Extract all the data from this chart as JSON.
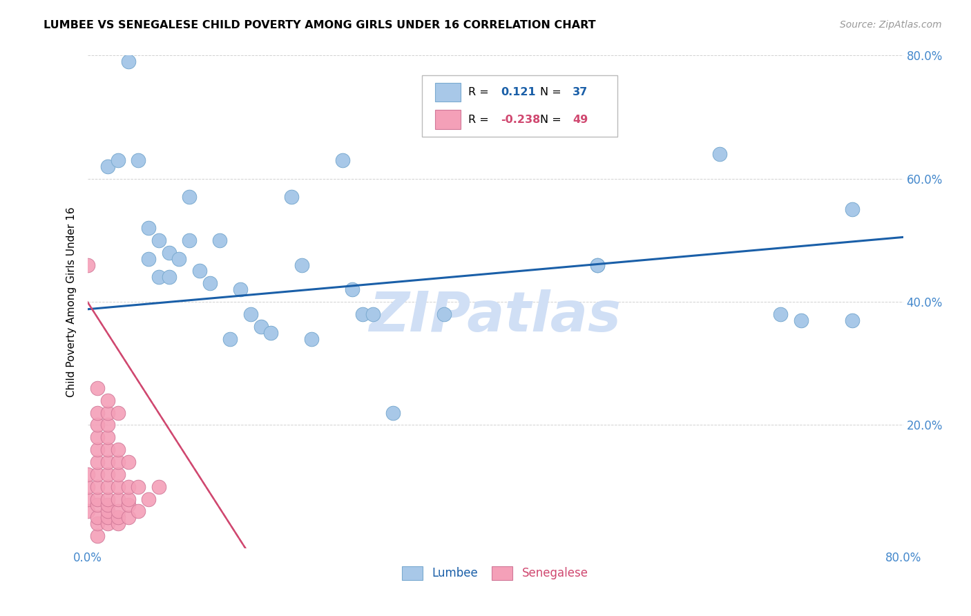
{
  "title": "LUMBEE VS SENEGALESE CHILD POVERTY AMONG GIRLS UNDER 16 CORRELATION CHART",
  "source": "Source: ZipAtlas.com",
  "ylabel": "Child Poverty Among Girls Under 16",
  "xlim": [
    0,
    0.8
  ],
  "ylim": [
    0,
    0.8
  ],
  "xticks": [
    0.0,
    0.1,
    0.2,
    0.3,
    0.4,
    0.5,
    0.6,
    0.7,
    0.8
  ],
  "yticks": [
    0.0,
    0.2,
    0.4,
    0.6,
    0.8
  ],
  "lumbee_R": 0.121,
  "lumbee_N": 37,
  "senegalese_R": -0.238,
  "senegalese_N": 49,
  "lumbee_color": "#a8c8e8",
  "lumbee_edge": "#7aaad0",
  "senegalese_color": "#f4a0b8",
  "senegalese_edge": "#d07898",
  "trendline_blue_color": "#1a5fa8",
  "trendline_pink_color": "#d04870",
  "watermark_color": "#d0dff5",
  "lumbee_x": [
    0.02,
    0.03,
    0.04,
    0.05,
    0.06,
    0.06,
    0.07,
    0.07,
    0.08,
    0.08,
    0.09,
    0.1,
    0.1,
    0.11,
    0.12,
    0.13,
    0.14,
    0.15,
    0.16,
    0.17,
    0.18,
    0.2,
    0.21,
    0.25,
    0.26,
    0.27,
    0.28,
    0.3,
    0.35,
    0.5,
    0.5,
    0.62,
    0.68,
    0.7,
    0.75,
    0.75,
    0.22
  ],
  "lumbee_y": [
    0.62,
    0.63,
    0.79,
    0.63,
    0.52,
    0.47,
    0.5,
    0.44,
    0.48,
    0.44,
    0.47,
    0.5,
    0.57,
    0.45,
    0.43,
    0.5,
    0.34,
    0.42,
    0.38,
    0.36,
    0.35,
    0.57,
    0.46,
    0.63,
    0.42,
    0.38,
    0.38,
    0.22,
    0.38,
    0.46,
    0.46,
    0.64,
    0.38,
    0.37,
    0.37,
    0.55,
    0.34
  ],
  "senegalese_x": [
    0.0,
    0.0,
    0.0,
    0.0,
    0.0,
    0.01,
    0.01,
    0.01,
    0.01,
    0.01,
    0.01,
    0.01,
    0.01,
    0.01,
    0.01,
    0.01,
    0.01,
    0.01,
    0.02,
    0.02,
    0.02,
    0.02,
    0.02,
    0.02,
    0.02,
    0.02,
    0.02,
    0.02,
    0.02,
    0.02,
    0.02,
    0.03,
    0.03,
    0.03,
    0.03,
    0.03,
    0.03,
    0.03,
    0.03,
    0.03,
    0.04,
    0.04,
    0.04,
    0.04,
    0.04,
    0.05,
    0.05,
    0.06,
    0.07
  ],
  "senegalese_y": [
    0.06,
    0.08,
    0.1,
    0.12,
    0.46,
    0.02,
    0.04,
    0.05,
    0.07,
    0.08,
    0.1,
    0.12,
    0.14,
    0.16,
    0.18,
    0.2,
    0.22,
    0.26,
    0.04,
    0.05,
    0.06,
    0.07,
    0.08,
    0.1,
    0.12,
    0.14,
    0.16,
    0.18,
    0.2,
    0.22,
    0.24,
    0.04,
    0.05,
    0.06,
    0.08,
    0.1,
    0.12,
    0.14,
    0.16,
    0.22,
    0.05,
    0.07,
    0.08,
    0.1,
    0.14,
    0.06,
    0.1,
    0.08,
    0.1
  ],
  "blue_trend_x0": 0.0,
  "blue_trend_y0": 0.388,
  "blue_trend_x1": 0.8,
  "blue_trend_y1": 0.505,
  "pink_trend_x0": 0.0,
  "pink_trend_y0": 0.4,
  "pink_trend_x1": 0.155,
  "pink_trend_y1": 0.0
}
